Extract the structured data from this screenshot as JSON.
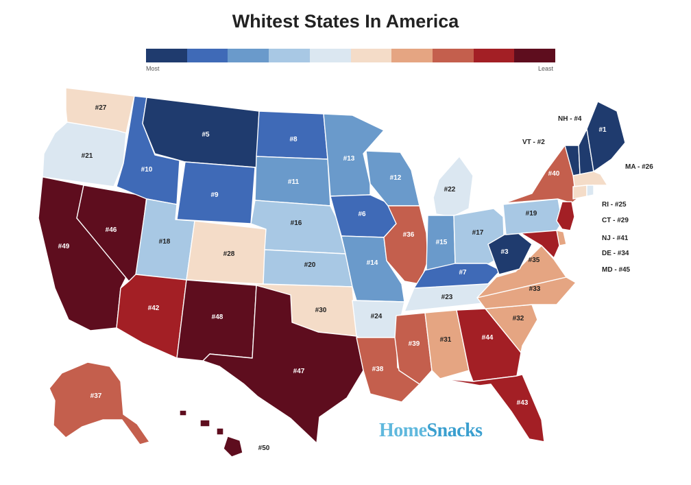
{
  "title": "Whitest States In America",
  "legend": {
    "low_label": "Most",
    "high_label": "Least",
    "colors": [
      "#1f3b6e",
      "#3f6ab7",
      "#6a9acb",
      "#a8c8e4",
      "#dbe7f1",
      "#f4dcc8",
      "#e5a582",
      "#c45f4d",
      "#a31f25",
      "#5e0d1e"
    ]
  },
  "brand": {
    "part1": "Home",
    "part2": "Snacks"
  },
  "states": [
    {
      "abbr": "WA",
      "rank": 27
    },
    {
      "abbr": "OR",
      "rank": 21
    },
    {
      "abbr": "CA",
      "rank": 49
    },
    {
      "abbr": "NV",
      "rank": 46
    },
    {
      "abbr": "ID",
      "rank": 10
    },
    {
      "abbr": "MT",
      "rank": 5
    },
    {
      "abbr": "WY",
      "rank": 9
    },
    {
      "abbr": "UT",
      "rank": 18
    },
    {
      "abbr": "AZ",
      "rank": 42
    },
    {
      "abbr": "CO",
      "rank": 28
    },
    {
      "abbr": "NM",
      "rank": 48
    },
    {
      "abbr": "ND",
      "rank": 8
    },
    {
      "abbr": "SD",
      "rank": 11
    },
    {
      "abbr": "NE",
      "rank": 16
    },
    {
      "abbr": "KS",
      "rank": 20
    },
    {
      "abbr": "OK",
      "rank": 30
    },
    {
      "abbr": "TX",
      "rank": 47
    },
    {
      "abbr": "MN",
      "rank": 13
    },
    {
      "abbr": "IA",
      "rank": 6
    },
    {
      "abbr": "MO",
      "rank": 14
    },
    {
      "abbr": "AR",
      "rank": 24
    },
    {
      "abbr": "LA",
      "rank": 38
    },
    {
      "abbr": "WI",
      "rank": 12
    },
    {
      "abbr": "IL",
      "rank": 36
    },
    {
      "abbr": "MI",
      "rank": 22
    },
    {
      "abbr": "IN",
      "rank": 15
    },
    {
      "abbr": "OH",
      "rank": 17
    },
    {
      "abbr": "KY",
      "rank": 7
    },
    {
      "abbr": "TN",
      "rank": 23
    },
    {
      "abbr": "MS",
      "rank": 39
    },
    {
      "abbr": "AL",
      "rank": 31
    },
    {
      "abbr": "GA",
      "rank": 44
    },
    {
      "abbr": "FL",
      "rank": 43
    },
    {
      "abbr": "SC",
      "rank": 32
    },
    {
      "abbr": "NC",
      "rank": 33
    },
    {
      "abbr": "VA",
      "rank": 35
    },
    {
      "abbr": "WV",
      "rank": 3
    },
    {
      "abbr": "PA",
      "rank": 19
    },
    {
      "abbr": "NY",
      "rank": 40
    },
    {
      "abbr": "VT",
      "rank": 2
    },
    {
      "abbr": "NH",
      "rank": 4
    },
    {
      "abbr": "ME",
      "rank": 1
    },
    {
      "abbr": "MA",
      "rank": 26
    },
    {
      "abbr": "RI",
      "rank": 25
    },
    {
      "abbr": "CT",
      "rank": 29
    },
    {
      "abbr": "NJ",
      "rank": 41
    },
    {
      "abbr": "DE",
      "rank": 34
    },
    {
      "abbr": "MD",
      "rank": 45
    },
    {
      "abbr": "AK",
      "rank": 37
    },
    {
      "abbr": "HI",
      "rank": 50
    }
  ],
  "callouts": [
    {
      "abbr": "NH",
      "text": "NH - #4"
    },
    {
      "abbr": "VT",
      "text": "VT - #2"
    },
    {
      "abbr": "MA",
      "text": "MA - #26"
    },
    {
      "abbr": "RI",
      "text": "RI - #25"
    },
    {
      "abbr": "CT",
      "text": "CT - #29"
    },
    {
      "abbr": "NJ",
      "text": "NJ - #41"
    },
    {
      "abbr": "DE",
      "text": "DE - #34"
    },
    {
      "abbr": "MD",
      "text": "MD - #45"
    }
  ]
}
